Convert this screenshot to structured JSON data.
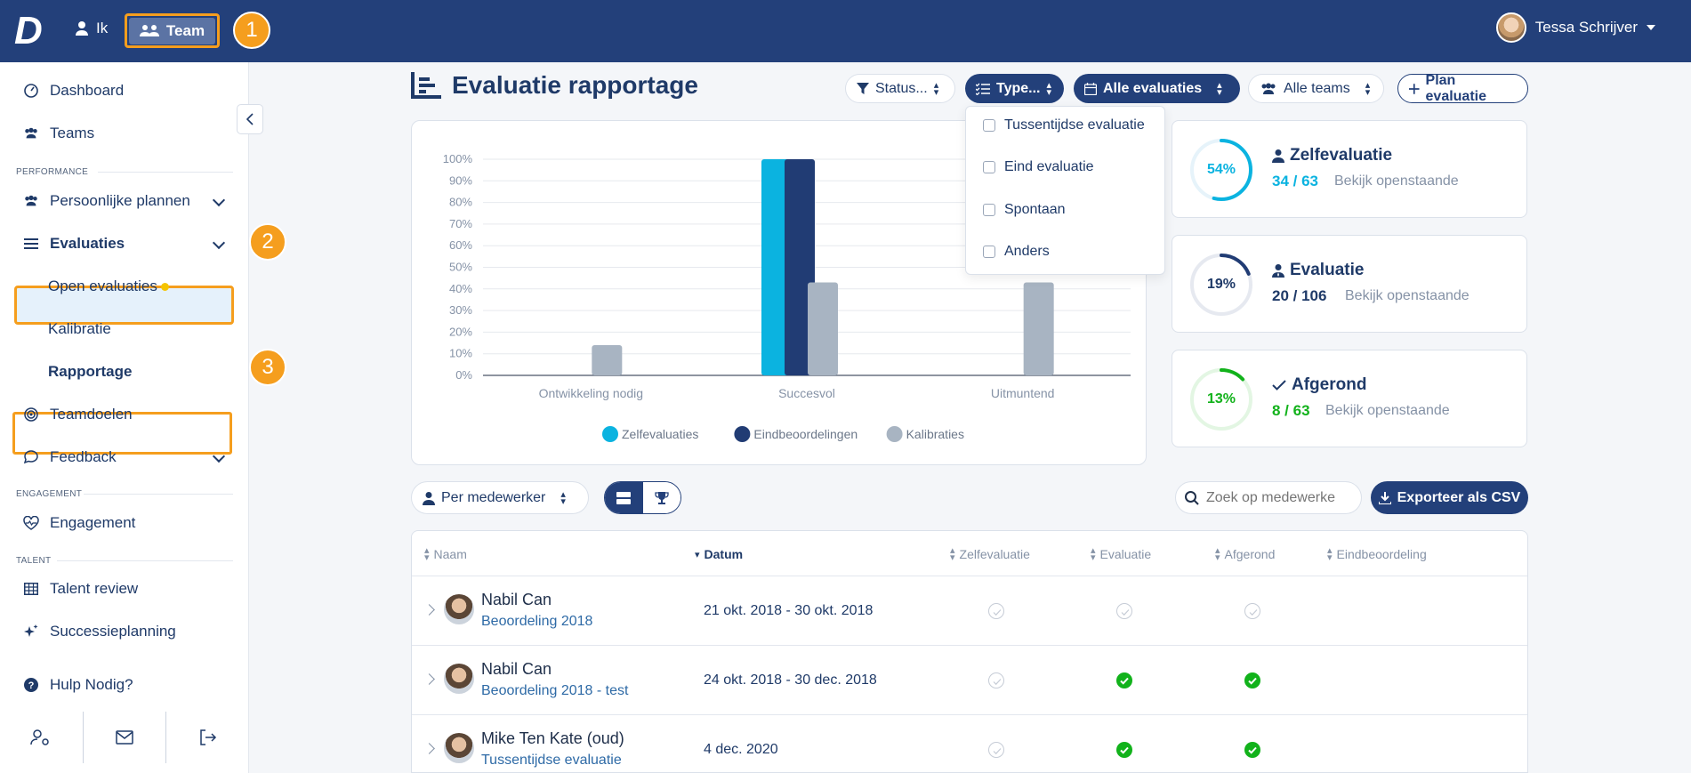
{
  "topbar": {
    "logo": "D",
    "nav_ik": "Ik",
    "nav_team": "Team",
    "user_name": "Tessa Schrijver"
  },
  "badges": [
    "1",
    "2",
    "3"
  ],
  "sidebar": {
    "dashboard": "Dashboard",
    "teams": "Teams",
    "section_performance": "PERFORMANCE",
    "persoonlijke_plannen": "Persoonlijke plannen",
    "evaluaties": "Evaluaties",
    "open_evaluaties": "Open evaluaties",
    "kalibratie": "Kalibratie",
    "rapportage": "Rapportage",
    "teamdoelen": "Teamdoelen",
    "feedback": "Feedback",
    "section_engagement": "ENGAGEMENT",
    "engagement": "Engagement",
    "section_talent": "TALENT",
    "talent_review": "Talent review",
    "successieplanning": "Successieplanning",
    "hulp": "Hulp Nodig?"
  },
  "header": {
    "title": "Evaluatie rapportage",
    "filter_status": "Status...",
    "filter_type": "Type...",
    "filter_evaluaties": "Alle evaluaties",
    "filter_teams": "Alle teams",
    "plan_button": "Plan evaluatie"
  },
  "type_dropdown": {
    "options": [
      "Tussentijdse evaluatie",
      "Eind evaluatie",
      "Spontaan",
      "Anders"
    ]
  },
  "chart_data": {
    "type": "bar",
    "categories": [
      "Ontwikkeling nodig",
      "Succesvol",
      "Uitmuntend"
    ],
    "series": [
      {
        "name": "Zelfevaluaties",
        "values": [
          0,
          100,
          0
        ],
        "color": "#0bb3e0"
      },
      {
        "name": "Eindbeoordelingen",
        "values": [
          0,
          100,
          0
        ],
        "color": "#213c74"
      },
      {
        "name": "Kalibraties",
        "values": [
          14,
          43,
          43
        ],
        "color": "#a8b4c2"
      }
    ],
    "yticks": [
      "0%",
      "10%",
      "20%",
      "30%",
      "40%",
      "50%",
      "60%",
      "70%",
      "80%",
      "90%",
      "100%"
    ],
    "ylim": [
      0,
      100
    ],
    "legend": "bottom",
    "grid": true
  },
  "stats": [
    {
      "title": "Zelfevaluatie",
      "percent_label": "54%",
      "percent": 54,
      "value": "34 / 63",
      "link": "Bekijk openstaande",
      "color": "#0bb3e0",
      "track": "#e6f3fa"
    },
    {
      "title": "Evaluatie",
      "percent_label": "19%",
      "percent": 19,
      "value": "20 / 106",
      "link": "Bekijk openstaande",
      "color": "#213c74",
      "track": "#e6e9f0"
    },
    {
      "title": "Afgerond",
      "percent_label": "13%",
      "percent": 13,
      "value": "8 / 63",
      "link": "Bekijk openstaande",
      "color": "#12b21b",
      "track": "#e3f6e3"
    }
  ],
  "toolbar": {
    "per_medewerker": "Per medewerker",
    "search_placeholder": "Zoek op medewerker",
    "export": "Exporteer als CSV"
  },
  "table": {
    "headers": [
      "Naam",
      "Datum",
      "Zelfevaluatie",
      "Evaluatie",
      "Afgerond",
      "Eindbeoordeling"
    ],
    "rows": [
      {
        "name": "Nabil Can",
        "sub": "Beoordeling 2018",
        "date": "21 okt. 2018 - 30 okt. 2018",
        "zelf": false,
        "eval": false,
        "afgerond": false
      },
      {
        "name": "Nabil Can",
        "sub": "Beoordeling 2018 - test",
        "date": "24 okt. 2018 - 30 dec. 2018",
        "zelf": false,
        "eval": true,
        "afgerond": true
      },
      {
        "name": "Mike Ten Kate (oud)",
        "sub": "Tussentijdse evaluatie",
        "date": "4 dec. 2020",
        "zelf": false,
        "eval": true,
        "afgerond": true
      }
    ]
  }
}
